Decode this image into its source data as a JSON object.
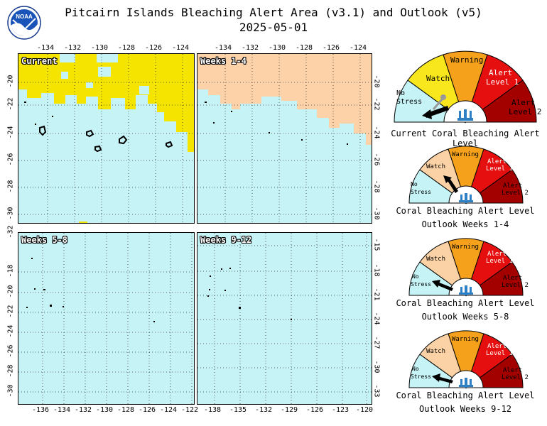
{
  "header": {
    "title": "Pitcairn Islands Bleaching Alert Area (v3.1) and Outlook (v5)",
    "date": "2025-05-01",
    "logo_text": "NOAA"
  },
  "colors": {
    "ocean": "#c6f3f6",
    "watch_area": "#f5e400",
    "outlook_watch_area": "#fdd2a8",
    "no_stress": "#c6f3f6",
    "watch": "#f9e71e",
    "warning": "#f5a11b",
    "alert1": "#e50f0f",
    "alert2": "#a30000",
    "outlook_watch": "#fbd2a5"
  },
  "panels": [
    {
      "label": "Current",
      "x_ticks": [
        "-134",
        "-132",
        "-130",
        "-128",
        "-126",
        "-124"
      ],
      "y_ticks_left": [
        "-20",
        "-22",
        "-24",
        "-26",
        "-28",
        "-30"
      ],
      "y_ticks_right": []
    },
    {
      "label": "Weeks 1-4",
      "x_ticks": [
        "-134",
        "-132",
        "-130",
        "-128",
        "-126",
        "-124"
      ],
      "y_ticks_left": [],
      "y_ticks_right": [
        "-20",
        "-22",
        "-24",
        "-26",
        "-28",
        "-30"
      ]
    },
    {
      "label": "Weeks 5-8",
      "x_ticks": [
        "-136",
        "-134",
        "-132",
        "-130",
        "-128",
        "-126",
        "-124",
        "-122"
      ],
      "y_ticks_left": [
        "-18",
        "-20",
        "-22",
        "-24",
        "-26",
        "-28",
        "-30",
        "-32"
      ],
      "y_ticks_right": []
    },
    {
      "label": "Weeks 9-12",
      "x_ticks": [
        "-138",
        "-135",
        "-132",
        "-129",
        "-126",
        "-123",
        "-120"
      ],
      "y_ticks_left": [],
      "y_ticks_right": [
        "-15",
        "-18",
        "-21",
        "-24",
        "-27",
        "-30",
        "-33"
      ]
    }
  ],
  "gauges": [
    {
      "caption1": "Current Coral Bleaching Alert Level",
      "caption2": "",
      "labels": {
        "no_stress": "No Stress",
        "watch": "Watch",
        "warning": "Warning",
        "alert1": "Alert Level 1",
        "alert2": "Alert Level 2"
      },
      "pointer_level": "No Stress"
    },
    {
      "caption1": "Coral Bleaching Alert Level",
      "caption2": "Outlook Weeks 1-4",
      "labels": {
        "no_stress": "No Stress",
        "watch": "Watch",
        "warning": "Warning",
        "alert1": "Alert Level 1",
        "alert2": "Alert Level 2"
      },
      "pointer_level": "Watch"
    },
    {
      "caption1": "Coral Bleaching Alert Level",
      "caption2": "Outlook Weeks 5-8",
      "labels": {
        "no_stress": "No Stress",
        "watch": "Watch",
        "warning": "Warning",
        "alert1": "Alert Level 1",
        "alert2": "Alert Level 2"
      },
      "pointer_level": "No Stress"
    },
    {
      "caption1": "Coral Bleaching Alert Level",
      "caption2": "Outlook Weeks 9-12",
      "labels": {
        "no_stress": "No Stress",
        "watch": "Watch",
        "warning": "Warning",
        "alert1": "Alert Level 1",
        "alert2": "Alert Level 2"
      },
      "pointer_level": "No Stress"
    }
  ]
}
